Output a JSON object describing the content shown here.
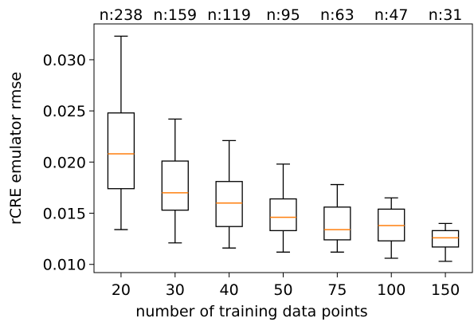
{
  "chart_data": {
    "type": "box",
    "xlabel": "number of training data points",
    "ylabel": "rCRE emulator rmse",
    "ylim": [
      0.0092,
      0.0335
    ],
    "yticks": [
      "0.010",
      "0.015",
      "0.020",
      "0.025",
      "0.030"
    ],
    "categories": [
      "20",
      "30",
      "40",
      "50",
      "75",
      "100",
      "150"
    ],
    "sample_counts": [
      "n:238",
      "n:159",
      "n:119",
      "n:95",
      "n:63",
      "n:47",
      "n:31"
    ],
    "boxes": [
      {
        "whisker_low": 0.0134,
        "q1": 0.0174,
        "median": 0.0208,
        "q3": 0.0248,
        "whisker_high": 0.0323
      },
      {
        "whisker_low": 0.0121,
        "q1": 0.0153,
        "median": 0.017,
        "q3": 0.0201,
        "whisker_high": 0.0242
      },
      {
        "whisker_low": 0.0116,
        "q1": 0.0137,
        "median": 0.016,
        "q3": 0.0181,
        "whisker_high": 0.0221
      },
      {
        "whisker_low": 0.0112,
        "q1": 0.0133,
        "median": 0.0146,
        "q3": 0.0164,
        "whisker_high": 0.0198
      },
      {
        "whisker_low": 0.0112,
        "q1": 0.0124,
        "median": 0.0134,
        "q3": 0.0156,
        "whisker_high": 0.0178
      },
      {
        "whisker_low": 0.0106,
        "q1": 0.0123,
        "median": 0.0138,
        "q3": 0.0154,
        "whisker_high": 0.0165
      },
      {
        "whisker_low": 0.0103,
        "q1": 0.0117,
        "median": 0.0126,
        "q3": 0.0133,
        "whisker_high": 0.014
      }
    ],
    "colors": {
      "box": "#000000",
      "median": "#ff7f0e"
    },
    "grid": false
  }
}
